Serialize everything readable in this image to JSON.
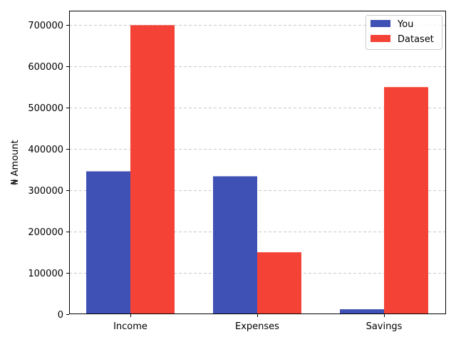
{
  "chart_data": {
    "type": "bar",
    "categories": [
      "Income",
      "Expenses",
      "Savings"
    ],
    "series": [
      {
        "name": "You",
        "values": [
          346000,
          334000,
          12000
        ],
        "color": "#3f51b5"
      },
      {
        "name": "Dataset",
        "values": [
          700000,
          150000,
          550000
        ],
        "color": "#f44336"
      }
    ],
    "ylabel": "₦ Amount",
    "ylim": [
      0,
      735000
    ],
    "yticks": [
      0,
      100000,
      200000,
      300000,
      400000,
      500000,
      600000,
      700000
    ],
    "grid": "y-dashed",
    "legend_position": "top-right"
  }
}
